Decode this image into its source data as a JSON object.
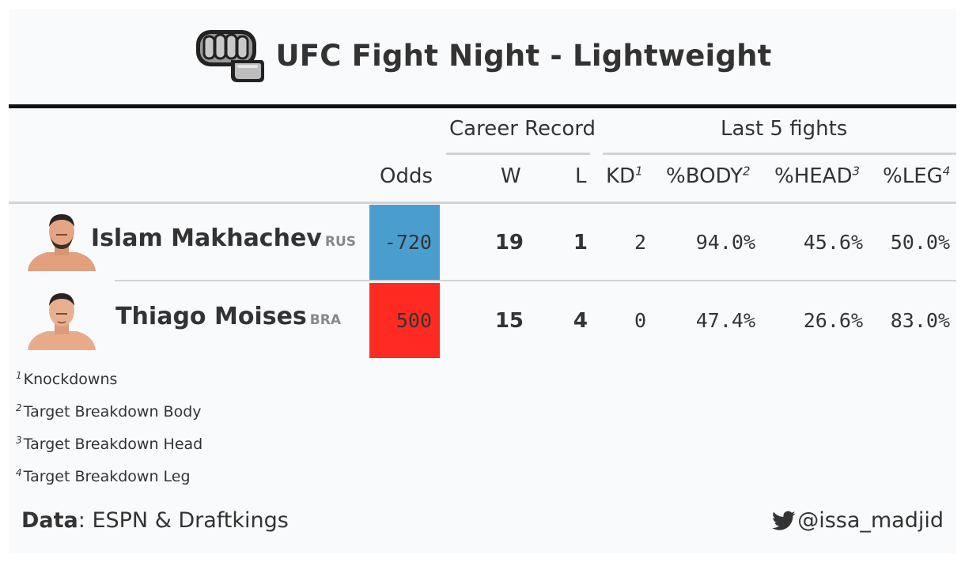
{
  "header": {
    "title": "UFC Fight Night - Lightweight",
    "icon": "fist-icon"
  },
  "columns": {
    "group_career": "Career Record",
    "group_last5": "Last 5 fights",
    "odds": "Odds",
    "wins": "W",
    "losses": "L",
    "kd": "KD",
    "kd_note": "1",
    "body": "%BODY",
    "body_note": "2",
    "head": "%HEAD",
    "head_note": "3",
    "leg": "%LEG",
    "leg_note": "4"
  },
  "fighters": [
    {
      "name": "Islam Makhachev",
      "country": "RUS",
      "odds": "-720",
      "odds_color": "#4a9ecf",
      "wins": "19",
      "losses": "1",
      "kd": "2",
      "body": "94.0%",
      "head": "45.6%",
      "leg": "50.0%"
    },
    {
      "name": "Thiago Moises",
      "country": "BRA",
      "odds": "500",
      "odds_color": "#ff2a22",
      "wins": "15",
      "losses": "4",
      "kd": "0",
      "body": "47.4%",
      "head": "26.6%",
      "leg": "83.0%"
    }
  ],
  "footnotes": [
    {
      "mark": "1",
      "text": "Knockdowns"
    },
    {
      "mark": "2",
      "text": "Target Breakdown Body"
    },
    {
      "mark": "3",
      "text": "Target Breakdown Head"
    },
    {
      "mark": "4",
      "text": "Target Breakdown Leg"
    }
  ],
  "footer": {
    "source_label": "Data",
    "source_text": ": ESPN & Draftkings",
    "handle": "@issa_madjid",
    "handle_icon": "twitter-icon"
  }
}
